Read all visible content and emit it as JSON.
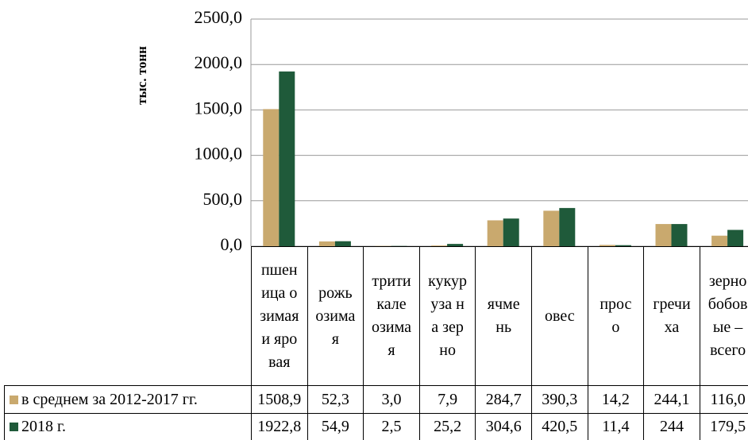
{
  "chart_data": {
    "type": "bar",
    "y_label": "тыс. тонн",
    "categories": [
      "пшеница озимая и яровая",
      "рожь озимая",
      "тритикале озимая",
      "кукуруза на зерно",
      "ячмень",
      "овес",
      "просо",
      "гречиха",
      "зернобобовые – всего"
    ],
    "series": [
      {
        "name": "в среднем за 2012-2017 гг.",
        "color": "#c9a96e",
        "values": [
          1508.9,
          52.3,
          3.0,
          7.9,
          284.7,
          390.3,
          14.2,
          244.1,
          116.0
        ],
        "value_labels": [
          "1508,9",
          "52,3",
          "3,0",
          "7,9",
          "284,7",
          "390,3",
          "14,2",
          "244,1",
          "116,0"
        ]
      },
      {
        "name": "2018 г.",
        "color": "#1f5a3a",
        "values": [
          1922.8,
          54.9,
          2.5,
          25.2,
          304.6,
          420.5,
          11.4,
          244,
          179.5
        ],
        "value_labels": [
          "1922,8",
          "54,9",
          "2,5",
          "25,2",
          "304,6",
          "420,5",
          "11,4",
          "244",
          "179,5"
        ]
      }
    ],
    "ylim": [
      0,
      2500
    ],
    "yticks": [
      {
        "value": 0,
        "label": "0,0"
      },
      {
        "value": 500,
        "label": "500,0"
      },
      {
        "value": 1000,
        "label": "1000,0"
      },
      {
        "value": 1500,
        "label": "1500,0"
      },
      {
        "value": 2000,
        "label": "2000,0"
      },
      {
        "value": 2500,
        "label": "2500,0"
      }
    ],
    "grid": true
  }
}
